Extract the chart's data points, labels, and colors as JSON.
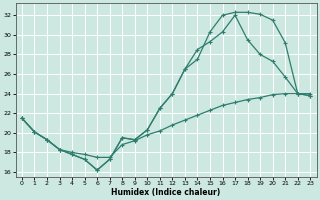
{
  "xlabel": "Humidex (Indice chaleur)",
  "bg_color": "#cce8e0",
  "grid_color": "#ffffff",
  "line_color": "#2e7d6e",
  "xlim": [
    -0.5,
    23.5
  ],
  "ylim": [
    15.5,
    33.2
  ],
  "xticks": [
    0,
    1,
    2,
    3,
    4,
    5,
    6,
    7,
    8,
    9,
    10,
    11,
    12,
    13,
    14,
    15,
    16,
    17,
    18,
    19,
    20,
    21,
    22,
    23
  ],
  "yticks": [
    16,
    18,
    20,
    22,
    24,
    26,
    28,
    30,
    32
  ],
  "curve1_x": [
    0,
    1,
    2,
    3,
    4,
    5,
    6,
    7,
    8,
    9,
    10,
    11,
    12,
    13,
    14,
    15,
    16,
    17,
    18,
    19,
    20,
    21,
    22,
    23
  ],
  "curve1_y": [
    21.5,
    20.1,
    19.3,
    18.3,
    17.8,
    17.3,
    16.2,
    17.3,
    19.5,
    19.3,
    20.3,
    22.5,
    24.0,
    26.5,
    27.5,
    30.3,
    32.0,
    32.3,
    32.3,
    32.1,
    31.5,
    29.2,
    24.0,
    23.8
  ],
  "curve2_x": [
    0,
    1,
    2,
    3,
    4,
    5,
    6,
    7,
    8,
    9,
    10,
    11,
    12,
    13,
    14,
    15,
    16,
    17,
    18,
    19,
    20,
    21,
    22,
    23
  ],
  "curve2_y": [
    21.5,
    20.1,
    19.3,
    18.3,
    17.8,
    17.3,
    16.2,
    17.3,
    19.5,
    19.3,
    20.3,
    22.5,
    24.0,
    26.5,
    28.5,
    29.3,
    30.3,
    32.0,
    29.5,
    28.0,
    27.3,
    25.7,
    24.0,
    23.8
  ],
  "curve3_x": [
    0,
    1,
    2,
    3,
    4,
    5,
    6,
    7,
    8,
    9,
    10,
    11,
    12,
    13,
    14,
    15,
    16,
    17,
    18,
    19,
    20,
    21,
    22,
    23
  ],
  "curve3_y": [
    21.5,
    20.1,
    19.3,
    18.3,
    18.0,
    17.8,
    17.5,
    17.5,
    18.8,
    19.2,
    19.8,
    20.2,
    20.8,
    21.3,
    21.8,
    22.3,
    22.8,
    23.1,
    23.4,
    23.6,
    23.9,
    24.0,
    24.0,
    24.0
  ]
}
